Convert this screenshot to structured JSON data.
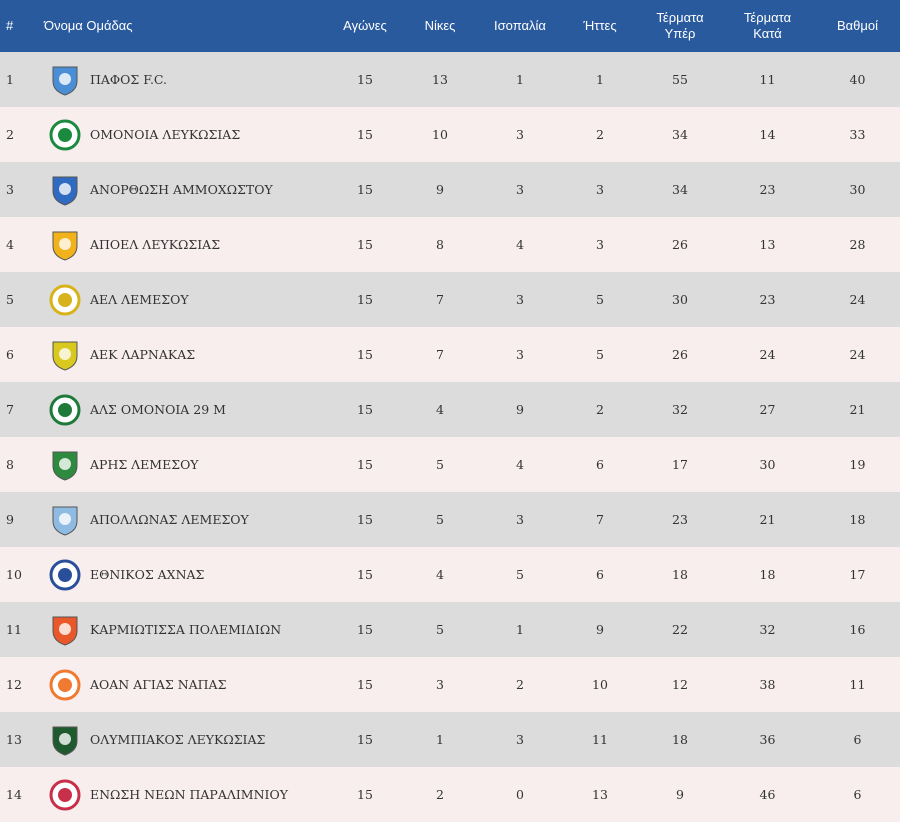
{
  "headers": {
    "pos": "#",
    "team": "Όνομα Ομάδας",
    "played": "Αγώνες",
    "wins": "Νίκες",
    "draws": "Ισοπαλία",
    "losses": "Ήττες",
    "gf_line1": "Τέρματα",
    "gf_line2": "Υπέρ",
    "ga_line1": "Τέρματα",
    "ga_line2": "Κατά",
    "points": "Βαθμοί"
  },
  "rows": [
    {
      "pos": "1",
      "team": "ΠΑΦΟΣ F.C.",
      "played": "15",
      "wins": "13",
      "draws": "1",
      "losses": "1",
      "gf": "55",
      "ga": "11",
      "points": "40",
      "crest_icon": "pafos-crest-icon",
      "crest_color": "#4a8fd6"
    },
    {
      "pos": "2",
      "team": "ΟΜΟΝΟΙΑ ΛΕΥΚΩΣΙΑΣ",
      "played": "15",
      "wins": "10",
      "draws": "3",
      "losses": "2",
      "gf": "34",
      "ga": "14",
      "points": "33",
      "crest_icon": "omonoia-crest-icon",
      "crest_color": "#1c8a3e"
    },
    {
      "pos": "3",
      "team": "ΑΝΟΡΘΩΣΗ ΑΜΜΟΧΩΣΤΟΥ",
      "played": "15",
      "wins": "9",
      "draws": "3",
      "losses": "3",
      "gf": "34",
      "ga": "23",
      "points": "30",
      "crest_icon": "anorthosis-crest-icon",
      "crest_color": "#2f6bc0"
    },
    {
      "pos": "4",
      "team": "ΑΠΟΕΛ ΛΕΥΚΩΣΙΑΣ",
      "played": "15",
      "wins": "8",
      "draws": "4",
      "losses": "3",
      "gf": "26",
      "ga": "13",
      "points": "28",
      "crest_icon": "apoel-crest-icon",
      "crest_color": "#f2b21b"
    },
    {
      "pos": "5",
      "team": "ΑΕΛ ΛΕΜΕΣΟΥ",
      "played": "15",
      "wins": "7",
      "draws": "3",
      "losses": "5",
      "gf": "30",
      "ga": "23",
      "points": "24",
      "crest_icon": "ael-crest-icon",
      "crest_color": "#d8b21a"
    },
    {
      "pos": "6",
      "team": "ΑΕΚ ΛΑΡΝΑΚΑΣ",
      "played": "15",
      "wins": "7",
      "draws": "3",
      "losses": "5",
      "gf": "26",
      "ga": "24",
      "points": "24",
      "crest_icon": "aek-crest-icon",
      "crest_color": "#d9c81d"
    },
    {
      "pos": "7",
      "team": "ΑΛΣ ΟΜΟΝΟΙΑ 29 Μ",
      "played": "15",
      "wins": "4",
      "draws": "9",
      "losses": "2",
      "gf": "32",
      "ga": "27",
      "points": "21",
      "crest_icon": "als-omonoia-crest-icon",
      "crest_color": "#1f7a3a"
    },
    {
      "pos": "8",
      "team": "ΑΡΗΣ ΛΕΜΕΣΟΥ",
      "played": "15",
      "wins": "5",
      "draws": "4",
      "losses": "6",
      "gf": "17",
      "ga": "30",
      "points": "19",
      "crest_icon": "aris-crest-icon",
      "crest_color": "#2e8a3f"
    },
    {
      "pos": "9",
      "team": "ΑΠΟΛΛΩΝΑΣ ΛΕΜΕΣΟΥ",
      "played": "15",
      "wins": "5",
      "draws": "3",
      "losses": "7",
      "gf": "23",
      "ga": "21",
      "points": "18",
      "crest_icon": "apollon-crest-icon",
      "crest_color": "#8fbbe3"
    },
    {
      "pos": "10",
      "team": "ΕΘΝΙΚΟΣ ΑΧΝΑΣ",
      "played": "15",
      "wins": "4",
      "draws": "5",
      "losses": "6",
      "gf": "18",
      "ga": "18",
      "points": "17",
      "crest_icon": "ethnikos-crest-icon",
      "crest_color": "#2a4f9a"
    },
    {
      "pos": "11",
      "team": "ΚΑΡΜΙΩΤΙΣΣΑ ΠΟΛΕΜΙΔΙΩΝ",
      "played": "15",
      "wins": "5",
      "draws": "1",
      "losses": "9",
      "gf": "22",
      "ga": "32",
      "points": "16",
      "crest_icon": "karmiotissa-crest-icon",
      "crest_color": "#e8582a"
    },
    {
      "pos": "12",
      "team": "ΑΟΑΝ ΑΓΙΑΣ ΝΑΠΑΣ",
      "played": "15",
      "wins": "3",
      "draws": "2",
      "losses": "10",
      "gf": "12",
      "ga": "38",
      "points": "11",
      "crest_icon": "aoan-crest-icon",
      "crest_color": "#f07a30"
    },
    {
      "pos": "13",
      "team": "ΟΛΥΜΠΙΑΚΟΣ ΛΕΥΚΩΣΙΑΣ",
      "played": "15",
      "wins": "1",
      "draws": "3",
      "losses": "11",
      "gf": "18",
      "ga": "36",
      "points": "6",
      "crest_icon": "olympiakos-crest-icon",
      "crest_color": "#1f5a2e"
    },
    {
      "pos": "14",
      "team": "ΕΝΩΣΗ ΝΕΩΝ ΠΑΡΑΛΙΜΝΙΟΥ",
      "played": "15",
      "wins": "2",
      "draws": "0",
      "losses": "13",
      "gf": "9",
      "ga": "46",
      "points": "6",
      "crest_icon": "enp-crest-icon",
      "crest_color": "#c8304a"
    }
  ]
}
